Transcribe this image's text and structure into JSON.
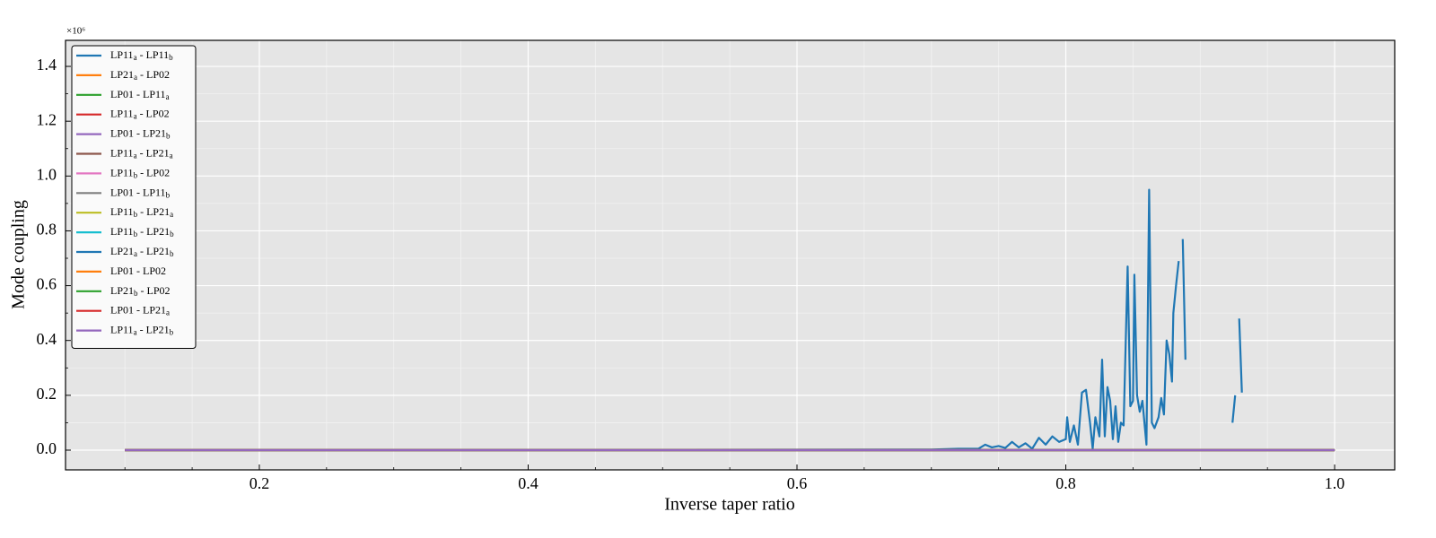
{
  "chart_data": {
    "type": "line",
    "xlabel": "Inverse taper ratio",
    "ylabel": "Mode coupling",
    "y_offset_label": "×10⁶",
    "xlim": [
      0.0558,
      1.0447
    ],
    "ylim": [
      -0.072,
      1.495
    ],
    "xticks": [
      0.2,
      0.4,
      0.6,
      0.8,
      {
        "value": 1.0,
        "label": "1.0"
      }
    ],
    "yticks": [
      {
        "value": 0,
        "label": "0.0"
      },
      0.2,
      0.4,
      0.6,
      0.8,
      {
        "value": 1.0,
        "label": "1.0"
      },
      1.2,
      1.4
    ],
    "xminorticks": [
      0.1,
      0.15,
      0.25,
      0.3,
      0.35,
      0.45,
      0.5,
      0.55,
      0.65,
      0.7,
      0.75,
      0.85,
      0.9,
      0.95
    ],
    "yminorticks": [
      0.1,
      0.3,
      0.5,
      0.7,
      0.9,
      1.1,
      1.3
    ],
    "grid": true,
    "legend_position": "upper-left",
    "series": [
      {
        "name": "LP11a - LP11b",
        "color": "#1f77b4",
        "x": [
          0.1,
          0.7,
          0.72,
          0.735,
          0.74,
          0.745,
          0.75,
          0.755,
          0.76,
          0.765,
          0.77,
          0.775,
          0.78,
          0.785,
          0.79,
          0.795,
          0.8,
          0.801,
          0.803,
          0.806,
          0.809,
          0.812,
          0.815,
          0.818,
          0.82,
          0.822,
          0.825,
          0.827,
          0.829,
          0.831,
          0.833,
          0.835,
          0.837,
          0.839,
          0.841,
          0.843,
          0.846,
          0.848,
          0.85,
          0.851,
          0.853,
          0.855,
          0.857,
          0.86,
          0.862,
          0.864,
          0.866,
          0.869,
          0.871,
          0.873,
          0.875,
          0.877,
          0.879,
          0.88,
          0.882,
          0.884,
          0.885,
          0.887,
          0.889,
          0.9,
          0.924,
          0.926,
          0.927,
          0.929,
          0.931
        ],
        "values": [
          0,
          0.002,
          0.005,
          0.005,
          0.02,
          0.01,
          0.015,
          0.008,
          0.03,
          0.01,
          0.025,
          0.005,
          0.045,
          0.02,
          0.05,
          0.03,
          0.04,
          0.12,
          0.03,
          0.09,
          0.02,
          0.21,
          0.22,
          0.1,
          0.005,
          0.12,
          0.05,
          0.33,
          0.05,
          0.23,
          0.18,
          0.04,
          0.16,
          0.03,
          0.1,
          0.09,
          0.67,
          0.16,
          0.18,
          0.64,
          0.2,
          0.14,
          0.18,
          0.02,
          0.95,
          0.1,
          0.08,
          0.12,
          0.19,
          0.13,
          0.4,
          0.35,
          0.25,
          0.5,
          0.6,
          0.69,
          null,
          0.77,
          0.33,
          null,
          0.1,
          0.2,
          null,
          0.48,
          0.21
        ]
      },
      {
        "name": "LP21a - LP02",
        "color": "#ff7f0e",
        "x": [
          0.1,
          1.0
        ],
        "values": [
          0,
          0
        ]
      },
      {
        "name": "LP01 - LP11a",
        "color": "#2ca02c",
        "x": [
          0.1,
          1.0
        ],
        "values": [
          0,
          0
        ]
      },
      {
        "name": "LP11a - LP02",
        "color": "#d62728",
        "x": [
          0.1,
          1.0
        ],
        "values": [
          0,
          0
        ]
      },
      {
        "name": "LP01 - LP21b",
        "color": "#9467bd",
        "x": [
          0.1,
          1.0
        ],
        "values": [
          0,
          0
        ]
      },
      {
        "name": "LP11a - LP21a",
        "color": "#8c564b",
        "x": [
          0.1,
          1.0
        ],
        "values": [
          0,
          0
        ]
      },
      {
        "name": "LP11b - LP02",
        "color": "#e377c2",
        "x": [
          0.1,
          1.0
        ],
        "values": [
          0,
          0
        ]
      },
      {
        "name": "LP01 - LP11b",
        "color": "#7f7f7f",
        "x": [
          0.1,
          1.0
        ],
        "values": [
          0,
          0
        ]
      },
      {
        "name": "LP11b - LP21a",
        "color": "#bcbd22",
        "x": [
          0.1,
          1.0
        ],
        "values": [
          0,
          0
        ]
      },
      {
        "name": "LP11b - LP21b",
        "color": "#17becf",
        "x": [
          0.1,
          1.0
        ],
        "values": [
          0,
          0
        ]
      },
      {
        "name": "LP21a - LP21b",
        "color": "#1f77b4",
        "x": [
          0.1,
          1.0
        ],
        "values": [
          0,
          0
        ]
      },
      {
        "name": "LP01 - LP02",
        "color": "#ff7f0e",
        "x": [
          0.1,
          1.0
        ],
        "values": [
          0,
          0
        ]
      },
      {
        "name": "LP21b - LP02",
        "color": "#2ca02c",
        "x": [
          0.1,
          1.0
        ],
        "values": [
          0,
          0
        ]
      },
      {
        "name": "LP01 - LP21a",
        "color": "#d62728",
        "x": [
          0.1,
          1.0
        ],
        "values": [
          0,
          0
        ]
      },
      {
        "name": "LP11a - LP21b",
        "color": "#9467bd",
        "x": [
          0.1,
          1.0
        ],
        "values": [
          0,
          0
        ]
      }
    ]
  }
}
